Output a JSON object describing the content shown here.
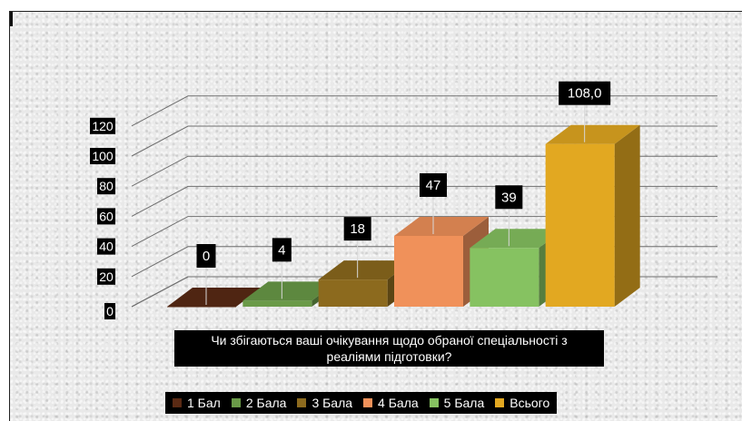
{
  "chart_data": {
    "type": "bar",
    "categories": [
      "1 Бал",
      "2 Бала",
      "3 Бала",
      "4 Бала",
      "5 Бала",
      "Всього"
    ],
    "values": [
      0,
      4,
      18,
      47,
      39,
      108.0
    ],
    "data_labels": [
      "0",
      "4",
      "18",
      "47",
      "39",
      "108,0"
    ],
    "xlabel": "Чи збігаються ваші очікування щодо обраної спеціальності з реаліями підготовки?",
    "xlabel_lines": [
      "Чи збігаються ваші очікування щодо обраної спеціальності з",
      "реаліями підготовки?"
    ],
    "ylim": [
      0,
      120
    ],
    "yticks": [
      "0",
      "20",
      "40",
      "60",
      "80",
      "100",
      "120"
    ],
    "grid": true,
    "legend_position": "bottom",
    "style": "3d-column",
    "colors": [
      "#5a2a14",
      "#6a9a48",
      "#8c6a1e",
      "#f0915a",
      "#86c261",
      "#e2a821"
    ]
  }
}
